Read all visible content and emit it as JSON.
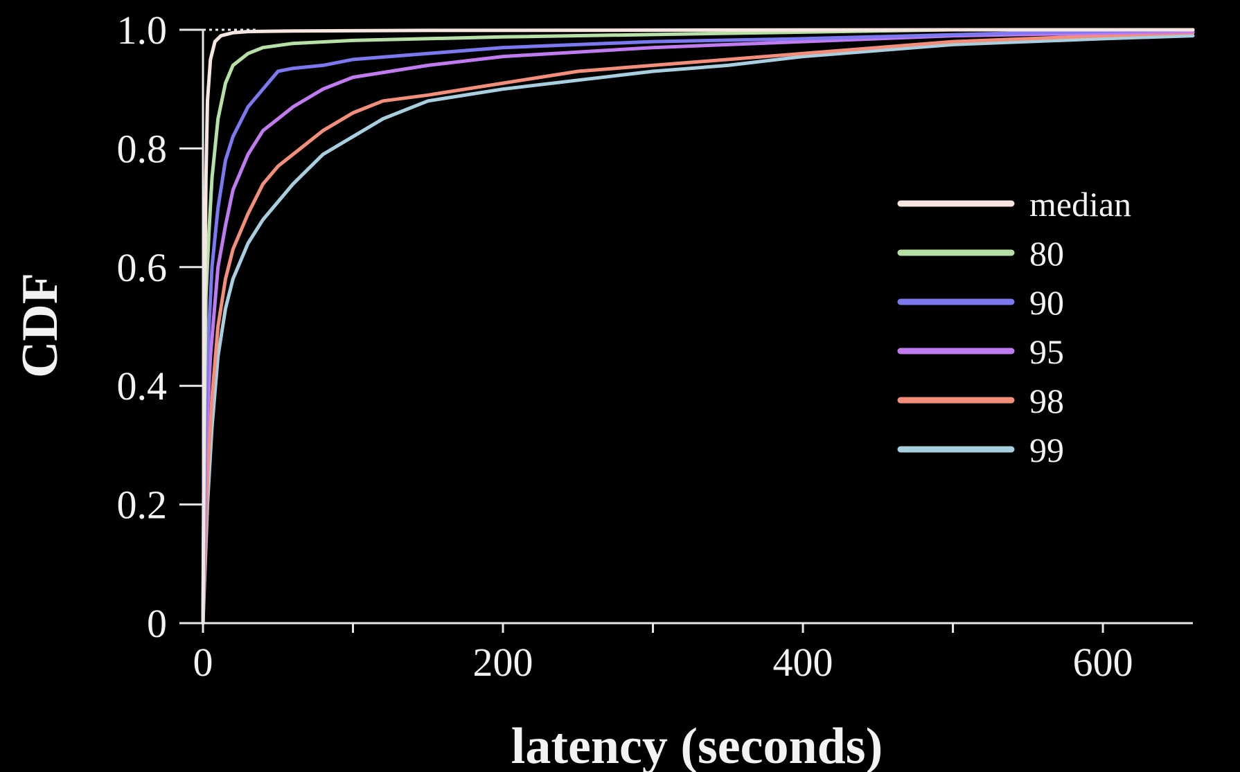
{
  "chart_data": {
    "type": "line",
    "xlabel": "latency (seconds)",
    "ylabel": "CDF",
    "xlim": [
      0,
      660
    ],
    "ylim": [
      0,
      1.0
    ],
    "x_ticks": [
      0,
      200,
      400,
      600
    ],
    "x_tick_labels": [
      "0",
      "200",
      "400",
      "600"
    ],
    "y_ticks": [
      0,
      0.2,
      0.4,
      0.6,
      0.8,
      1.0
    ],
    "y_tick_labels": [
      "0",
      "0.2",
      "0.4",
      "0.6",
      "0.8",
      "1.0"
    ],
    "grid": false,
    "legend_position": "center-right",
    "series": [
      {
        "name": "median",
        "color": "#f6e6df",
        "x": [
          0,
          1,
          2,
          3,
          5,
          8,
          12,
          20,
          30,
          60,
          150,
          500
        ],
        "y": [
          0,
          0.5,
          0.75,
          0.88,
          0.95,
          0.98,
          0.99,
          0.995,
          0.997,
          0.998,
          0.999,
          1.0
        ]
      },
      {
        "name": "80",
        "color": "#b7e0a6",
        "x": [
          0,
          1,
          2,
          4,
          6,
          10,
          15,
          20,
          30,
          40,
          60,
          100,
          200,
          400,
          500
        ],
        "y": [
          0,
          0.35,
          0.55,
          0.66,
          0.75,
          0.85,
          0.91,
          0.94,
          0.96,
          0.97,
          0.977,
          0.982,
          0.988,
          0.996,
          1.0
        ]
      },
      {
        "name": "90",
        "color": "#7b78f0",
        "x": [
          0,
          1,
          3,
          6,
          10,
          15,
          20,
          30,
          40,
          50,
          60,
          80,
          100,
          150,
          200,
          300,
          400,
          550,
          660
        ],
        "y": [
          0,
          0.25,
          0.45,
          0.6,
          0.7,
          0.78,
          0.82,
          0.87,
          0.9,
          0.93,
          0.935,
          0.94,
          0.95,
          0.96,
          0.97,
          0.98,
          0.985,
          0.995,
          1.0
        ]
      },
      {
        "name": "95",
        "color": "#c07bf0",
        "x": [
          0,
          2,
          5,
          10,
          15,
          20,
          30,
          40,
          50,
          60,
          80,
          100,
          150,
          200,
          300,
          400,
          500,
          660
        ],
        "y": [
          0,
          0.3,
          0.45,
          0.6,
          0.67,
          0.73,
          0.79,
          0.83,
          0.85,
          0.87,
          0.9,
          0.92,
          0.94,
          0.955,
          0.97,
          0.98,
          0.99,
          0.997
        ]
      },
      {
        "name": "98",
        "color": "#f28e7a",
        "x": [
          0,
          3,
          6,
          10,
          15,
          20,
          30,
          40,
          50,
          60,
          80,
          100,
          120,
          150,
          200,
          250,
          300,
          350,
          400,
          450,
          500,
          600,
          660
        ],
        "y": [
          0,
          0.25,
          0.38,
          0.5,
          0.58,
          0.63,
          0.69,
          0.74,
          0.77,
          0.79,
          0.83,
          0.86,
          0.88,
          0.89,
          0.91,
          0.93,
          0.94,
          0.95,
          0.96,
          0.97,
          0.98,
          0.99,
          0.995
        ]
      },
      {
        "name": "99",
        "color": "#a8cfe0",
        "x": [
          0,
          3,
          6,
          10,
          15,
          20,
          30,
          40,
          50,
          60,
          80,
          100,
          120,
          150,
          200,
          250,
          300,
          350,
          400,
          450,
          500,
          600,
          660
        ],
        "y": [
          0,
          0.2,
          0.33,
          0.45,
          0.53,
          0.58,
          0.64,
          0.68,
          0.71,
          0.74,
          0.79,
          0.82,
          0.85,
          0.88,
          0.9,
          0.915,
          0.93,
          0.94,
          0.955,
          0.965,
          0.975,
          0.985,
          0.99
        ]
      }
    ]
  }
}
